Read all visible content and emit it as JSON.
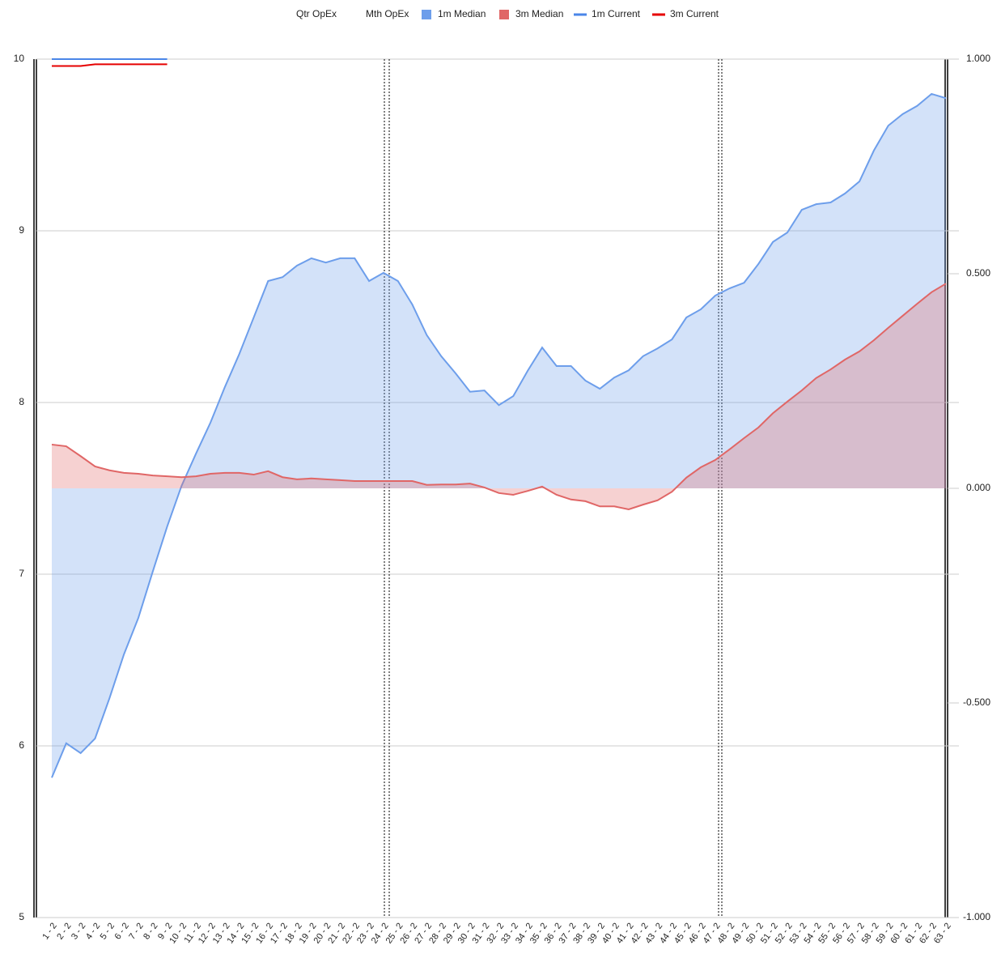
{
  "chart_data": {
    "type": "combo",
    "categories": [
      "1 - 2",
      "2 - 2",
      "3 - 2",
      "4 - 2",
      "5 - 2",
      "6 - 2",
      "7 - 2",
      "8 - 2",
      "9 - 2",
      "10 - 2",
      "11 - 2",
      "12 - 2",
      "13 - 2",
      "14 - 2",
      "15 - 2",
      "16 - 2",
      "17 - 2",
      "18 - 2",
      "19 - 2",
      "20 - 2",
      "21 - 2",
      "22 - 2",
      "23 - 2",
      "24 - 2",
      "25 - 2",
      "26 - 2",
      "27 - 2",
      "28 - 2",
      "29 - 2",
      "30 - 2",
      "31 - 2",
      "32 - 2",
      "33 - 2",
      "34 - 2",
      "35 - 2",
      "36 - 2",
      "37 - 2",
      "38 - 2",
      "39 - 2",
      "40 - 2",
      "41 - 2",
      "42 - 2",
      "43 - 2",
      "44 - 2",
      "45 - 2",
      "46 - 2",
      "47 - 2",
      "48 - 2",
      "49 - 2",
      "50 - 2",
      "51 - 2",
      "52 - 2",
      "53 - 2",
      "54 - 2",
      "55 - 2",
      "56 - 2",
      "57 - 2",
      "58 - 2",
      "59 - 2",
      "60 - 2",
      "61 - 2",
      "62 - 2",
      "63 - 2"
    ],
    "series": [
      {
        "name": "Qtr OpEx",
        "type": "line",
        "values": [
          null,
          null,
          null,
          null,
          null,
          null,
          null,
          null,
          null,
          null,
          null,
          null,
          null,
          null,
          null,
          null,
          null,
          null,
          null,
          null,
          null,
          null,
          null,
          null,
          null,
          null,
          null,
          null,
          null,
          null,
          null,
          null,
          null,
          null,
          null,
          null,
          null,
          null,
          null,
          null,
          null,
          null,
          null,
          null,
          null,
          null,
          null,
          null,
          null,
          null,
          null,
          null,
          null,
          null,
          null,
          null,
          null,
          null,
          null,
          null,
          null,
          null,
          null
        ]
      },
      {
        "name": "Mth OpEx",
        "type": "line",
        "values": [
          null,
          null,
          null,
          null,
          null,
          null,
          null,
          null,
          null,
          null,
          null,
          null,
          null,
          null,
          null,
          null,
          null,
          null,
          null,
          null,
          null,
          null,
          null,
          null,
          null,
          null,
          null,
          null,
          null,
          null,
          null,
          null,
          null,
          null,
          null,
          null,
          null,
          null,
          null,
          null,
          null,
          null,
          null,
          null,
          null,
          null,
          null,
          null,
          null,
          null,
          null,
          null,
          null,
          null,
          null,
          null,
          null,
          null,
          null,
          null,
          null,
          null,
          null
        ]
      },
      {
        "name": "1m Median",
        "type": "area",
        "axis": "y2",
        "color": "#6d9eeb",
        "values": [
          -0.674,
          -0.594,
          -0.617,
          -0.583,
          -0.489,
          -0.387,
          -0.302,
          -0.194,
          -0.089,
          0.006,
          0.081,
          0.153,
          0.236,
          0.313,
          0.398,
          0.483,
          0.492,
          0.519,
          0.536,
          0.526,
          0.536,
          0.536,
          0.483,
          0.502,
          0.483,
          0.428,
          0.357,
          0.308,
          0.268,
          0.225,
          0.228,
          0.194,
          0.215,
          0.274,
          0.328,
          0.285,
          0.285,
          0.251,
          0.232,
          0.258,
          0.275,
          0.308,
          0.326,
          0.347,
          0.398,
          0.417,
          0.449,
          0.466,
          0.479,
          0.523,
          0.574,
          0.596,
          0.649,
          0.662,
          0.666,
          0.687,
          0.715,
          0.787,
          0.845,
          0.872,
          0.891,
          0.919,
          0.909
        ]
      },
      {
        "name": "3m Median",
        "type": "area",
        "axis": "y2",
        "color": "#e06666",
        "values": [
          0.102,
          0.098,
          0.075,
          0.051,
          0.042,
          0.036,
          0.034,
          0.03,
          0.028,
          0.026,
          0.028,
          0.034,
          0.036,
          0.036,
          0.032,
          0.04,
          0.026,
          0.021,
          0.023,
          0.021,
          0.019,
          0.017,
          0.017,
          0.017,
          0.017,
          0.017,
          0.008,
          0.009,
          0.009,
          0.011,
          0.002,
          -0.011,
          -0.015,
          -0.006,
          0.004,
          -0.015,
          -0.026,
          -0.03,
          -0.042,
          -0.042,
          -0.049,
          -0.038,
          -0.028,
          -0.008,
          0.025,
          0.049,
          0.066,
          0.091,
          0.117,
          0.142,
          0.175,
          0.202,
          0.228,
          0.257,
          0.277,
          0.3,
          0.319,
          0.345,
          0.374,
          0.402,
          0.43,
          0.457,
          0.477
        ]
      },
      {
        "name": "1m Current",
        "type": "line",
        "color": "#4a86e8",
        "values": [
          10,
          10,
          10,
          10,
          10,
          10,
          10,
          10,
          10,
          null,
          null,
          null,
          null,
          null,
          null,
          null,
          null,
          null,
          null,
          null,
          null,
          null,
          null,
          null,
          null,
          null,
          null,
          null,
          null,
          null,
          null,
          null,
          null,
          null,
          null,
          null,
          null,
          null,
          null,
          null,
          null,
          null,
          null,
          null,
          null,
          null,
          null,
          null,
          null,
          null,
          null,
          null,
          null,
          null,
          null,
          null,
          null,
          null,
          null,
          null,
          null,
          null,
          null
        ]
      },
      {
        "name": "3m Current",
        "type": "line",
        "color": "#e60000",
        "values": [
          9.96,
          9.96,
          9.96,
          9.97,
          9.97,
          9.97,
          9.97,
          9.97,
          9.97,
          null,
          null,
          null,
          null,
          null,
          null,
          null,
          null,
          null,
          null,
          null,
          null,
          null,
          null,
          null,
          null,
          null,
          null,
          null,
          null,
          null,
          null,
          null,
          null,
          null,
          null,
          null,
          null,
          null,
          null,
          null,
          null,
          null,
          null,
          null,
          null,
          null,
          null,
          null,
          null,
          null,
          null,
          null,
          null,
          null,
          null,
          null,
          null,
          null,
          null,
          null,
          null,
          null,
          null
        ]
      }
    ],
    "ylim": [
      5,
      10
    ],
    "yticks": [
      5,
      6,
      7,
      8,
      9,
      10
    ],
    "y2lim": [
      -1,
      1
    ],
    "y2ticks": [
      {
        "value": -1,
        "label": "-1.000"
      },
      {
        "value": -0.5,
        "label": "-0.500"
      },
      {
        "value": 0,
        "label": "0.000"
      },
      {
        "value": 0.5,
        "label": "0.500"
      },
      {
        "value": 1,
        "label": "1.000"
      }
    ],
    "grid": true,
    "legend": "top"
  }
}
